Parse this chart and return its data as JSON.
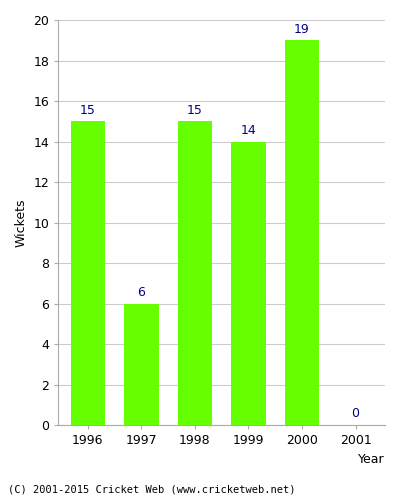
{
  "years": [
    1996,
    1997,
    1998,
    1999,
    2000,
    2001
  ],
  "values": [
    15,
    6,
    15,
    14,
    19,
    0
  ],
  "bar_color": "#66ff00",
  "bar_edgecolor": "#66ff00",
  "label_color": "#00008b",
  "ylabel": "Wickets",
  "xlabel": "Year",
  "ylim": [
    0,
    20
  ],
  "yticks": [
    0,
    2,
    4,
    6,
    8,
    10,
    12,
    14,
    16,
    18,
    20
  ],
  "footer": "(C) 2001-2015 Cricket Web (www.cricketweb.net)",
  "background_color": "#ffffff",
  "grid_color": "#cccccc",
  "bar_width": 0.65
}
